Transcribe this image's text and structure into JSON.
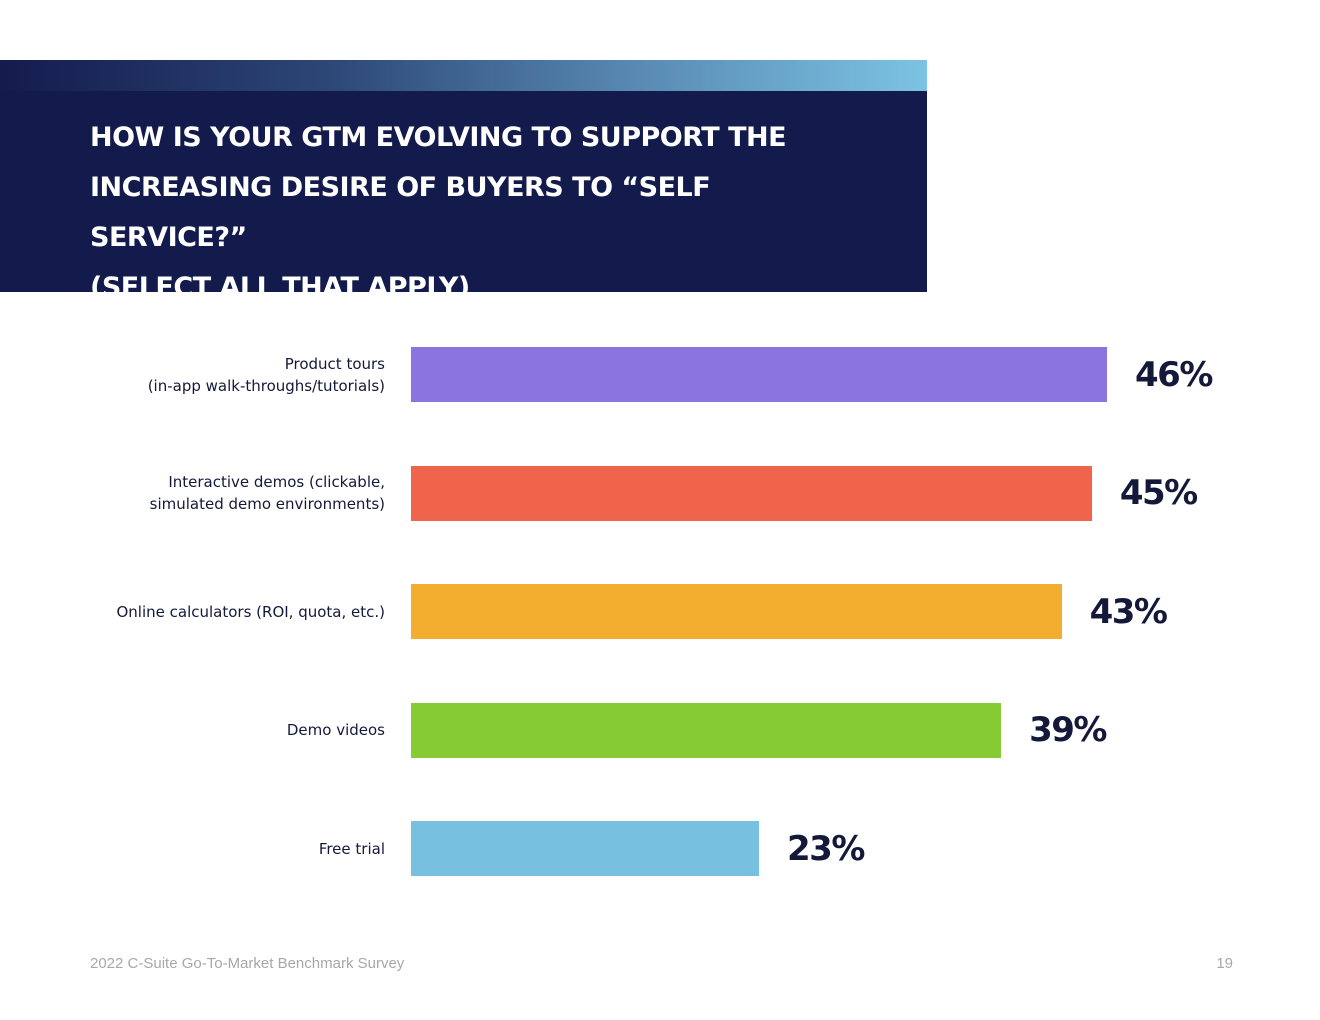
{
  "chart_data": {
    "type": "bar",
    "orientation": "horizontal",
    "title": "How is your GTM evolving to support the\nincreasing desire of buyers to “self service?”\n(Select all that apply)",
    "categories": [
      "Product tours\n(in-app walk-throughs/tutorials)",
      "Interactive demos (clickable,\nsimulated demo environments)",
      "Online calculators (ROI, quota, etc.)",
      "Demo videos",
      "Free trial"
    ],
    "values": [
      46,
      45,
      43,
      39,
      23
    ],
    "value_labels": [
      "46%",
      "45%",
      "43%",
      "39%",
      "23%"
    ],
    "colors": [
      "#8a74e0",
      "#f0644b",
      "#f3ae30",
      "#86cb33",
      "#78c0e0"
    ],
    "value_unit": "%",
    "grid": false,
    "legend": "none"
  },
  "footer": {
    "source": "2022 C-Suite Go-To-Market Benchmark Survey",
    "page_number": "19"
  }
}
